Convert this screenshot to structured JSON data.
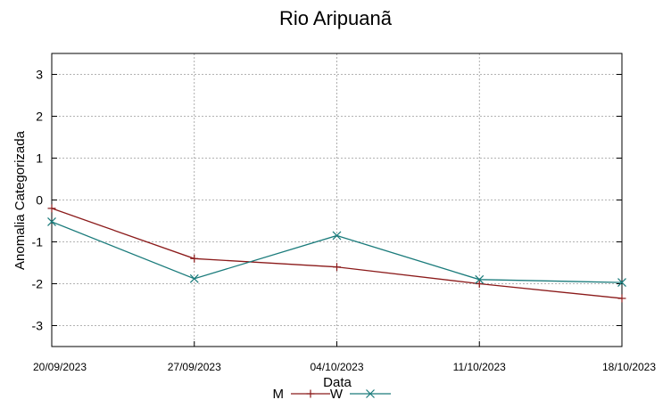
{
  "chart_data": {
    "type": "line",
    "title": "Rio Aripuanã",
    "xlabel": "Data",
    "ylabel": "Anomalia Categorizada",
    "categories": [
      "20/09/2023",
      "27/09/2023",
      "04/10/2023",
      "11/10/2023",
      "18/10/2023"
    ],
    "ylim": [
      -3.5,
      3.5
    ],
    "yticks": [
      -3,
      -2,
      -1,
      0,
      1,
      2,
      3
    ],
    "grid": true,
    "legend_position": "bottom",
    "series": [
      {
        "name": "M",
        "values": [
          -0.2,
          -1.4,
          -1.6,
          -2.0,
          -2.35
        ],
        "color": "#8b1a1a",
        "marker": "plus"
      },
      {
        "name": "W",
        "values": [
          -0.52,
          -1.88,
          -0.85,
          -1.9,
          -1.97
        ],
        "color": "#1a7b7b",
        "marker": "cross"
      }
    ]
  }
}
